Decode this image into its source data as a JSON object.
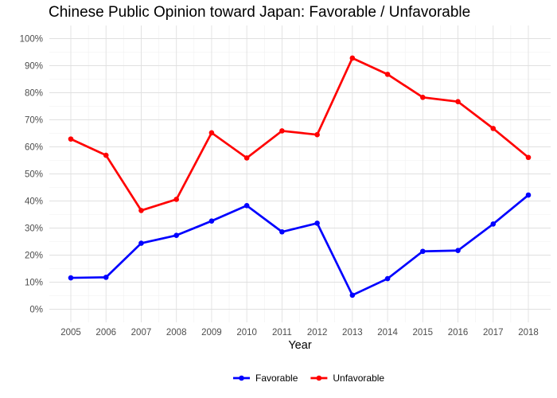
{
  "chart_data": {
    "type": "line",
    "title": "Chinese Public Opinion toward Japan: Favorable / Unfavorable",
    "xlabel": "Year",
    "ylabel": "",
    "x": [
      2005,
      2006,
      2007,
      2008,
      2009,
      2010,
      2011,
      2012,
      2013,
      2014,
      2015,
      2016,
      2017,
      2018
    ],
    "ylim": [
      0,
      100
    ],
    "yticks": [
      0,
      10,
      20,
      30,
      40,
      50,
      60,
      70,
      80,
      90,
      100
    ],
    "ytick_labels": [
      "0%",
      "10%",
      "20%",
      "30%",
      "40%",
      "50%",
      "60%",
      "70%",
      "80%",
      "90%",
      "100%"
    ],
    "grid": true,
    "legend_position": "bottom",
    "series": [
      {
        "name": "Favorable",
        "color": "#0000ff",
        "values": [
          11.6,
          11.8,
          24.4,
          27.3,
          32.6,
          38.3,
          28.6,
          31.8,
          5.2,
          11.3,
          21.4,
          21.7,
          31.5,
          42.2
        ]
      },
      {
        "name": "Unfavorable",
        "color": "#ff0000",
        "values": [
          62.9,
          56.9,
          36.5,
          40.6,
          65.2,
          55.9,
          65.9,
          64.5,
          92.8,
          86.8,
          78.3,
          76.7,
          66.8,
          56.1
        ]
      }
    ]
  }
}
